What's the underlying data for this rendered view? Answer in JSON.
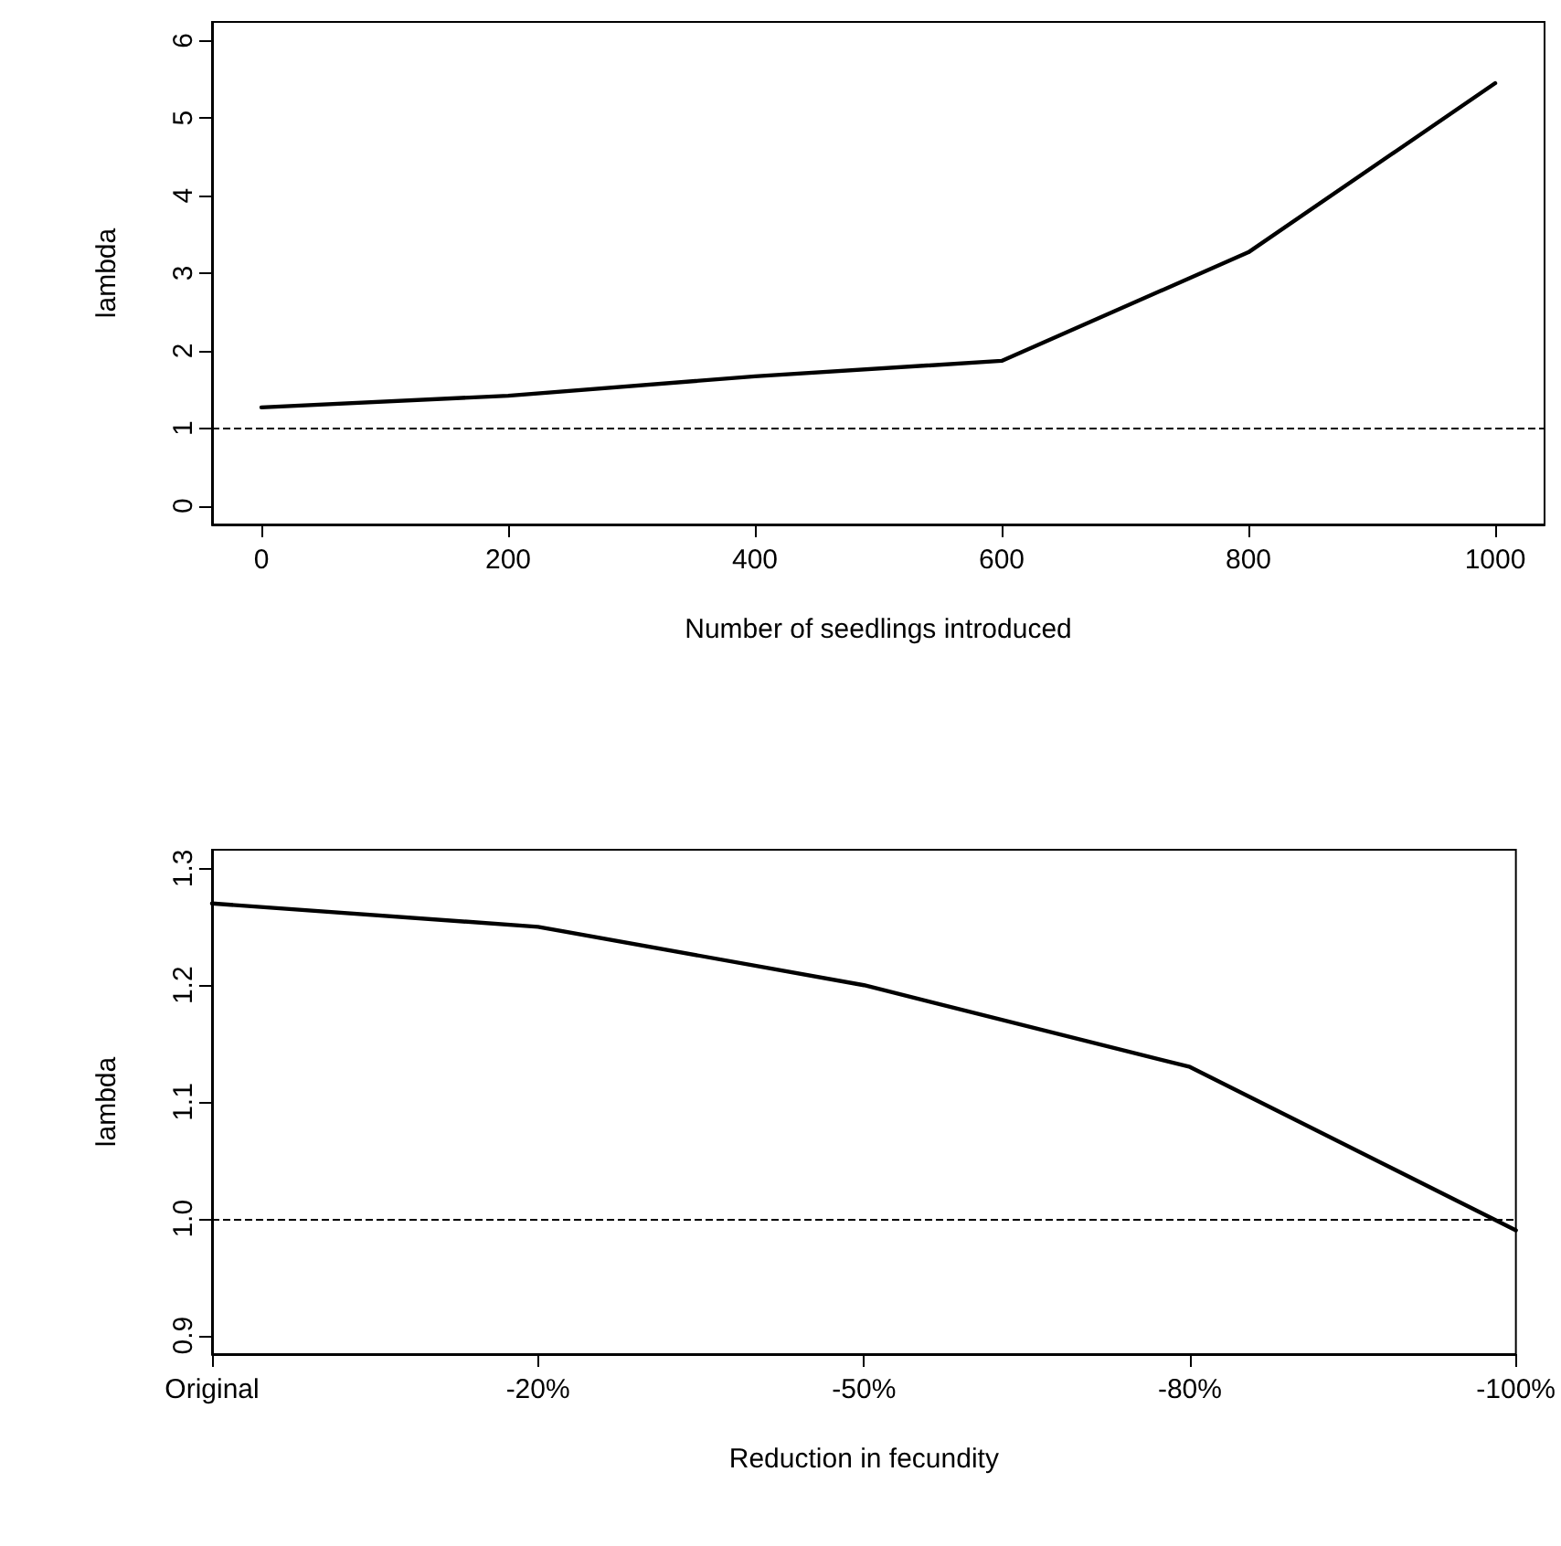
{
  "chart_data": [
    {
      "type": "line",
      "xlabel": "Number of seedlings introduced",
      "ylabel": "lambda",
      "x": [
        0,
        200,
        400,
        600,
        800,
        1000
      ],
      "series": [
        {
          "color": "#000000",
          "values": [
            1.27,
            1.42,
            1.67,
            1.87,
            3.27,
            5.45
          ]
        }
      ],
      "xlim": [
        -40,
        1040
      ],
      "xticks": [
        0,
        200,
        400,
        600,
        800,
        1000
      ],
      "ylim": [
        -0.24,
        6.24
      ],
      "yticks": [
        0,
        1,
        2,
        3,
        4,
        5,
        6
      ],
      "ref_lines": [
        {
          "axis": "y",
          "value": 1,
          "color": "#000000",
          "line_style": "dashed"
        }
      ],
      "grid": false,
      "legend": false,
      "marker": "none",
      "line_style": "solid"
    },
    {
      "type": "line",
      "xlabel": "Reduction in fecundity",
      "ylabel": "lambda",
      "categories": [
        "Original",
        "-20%",
        "-50%",
        "-80%",
        "-100%"
      ],
      "series": [
        {
          "color": "#000000",
          "values": [
            1.27,
            1.25,
            1.2,
            1.13,
            0.99
          ]
        }
      ],
      "ylim": [
        0.884,
        1.316
      ],
      "yticks": [
        {
          "value": 0.9,
          "label": "0.9"
        },
        {
          "value": 1.0,
          "label": "1.0"
        },
        {
          "value": 1.1,
          "label": "1.1"
        },
        {
          "value": 1.2,
          "label": "1.2"
        },
        {
          "value": 1.3,
          "label": "1.3"
        }
      ],
      "ref_lines": [
        {
          "axis": "y",
          "value": 1,
          "color": "#000000",
          "line_style": "dashed"
        }
      ],
      "grid": false,
      "legend": false,
      "marker": "none",
      "line_style": "solid"
    }
  ]
}
